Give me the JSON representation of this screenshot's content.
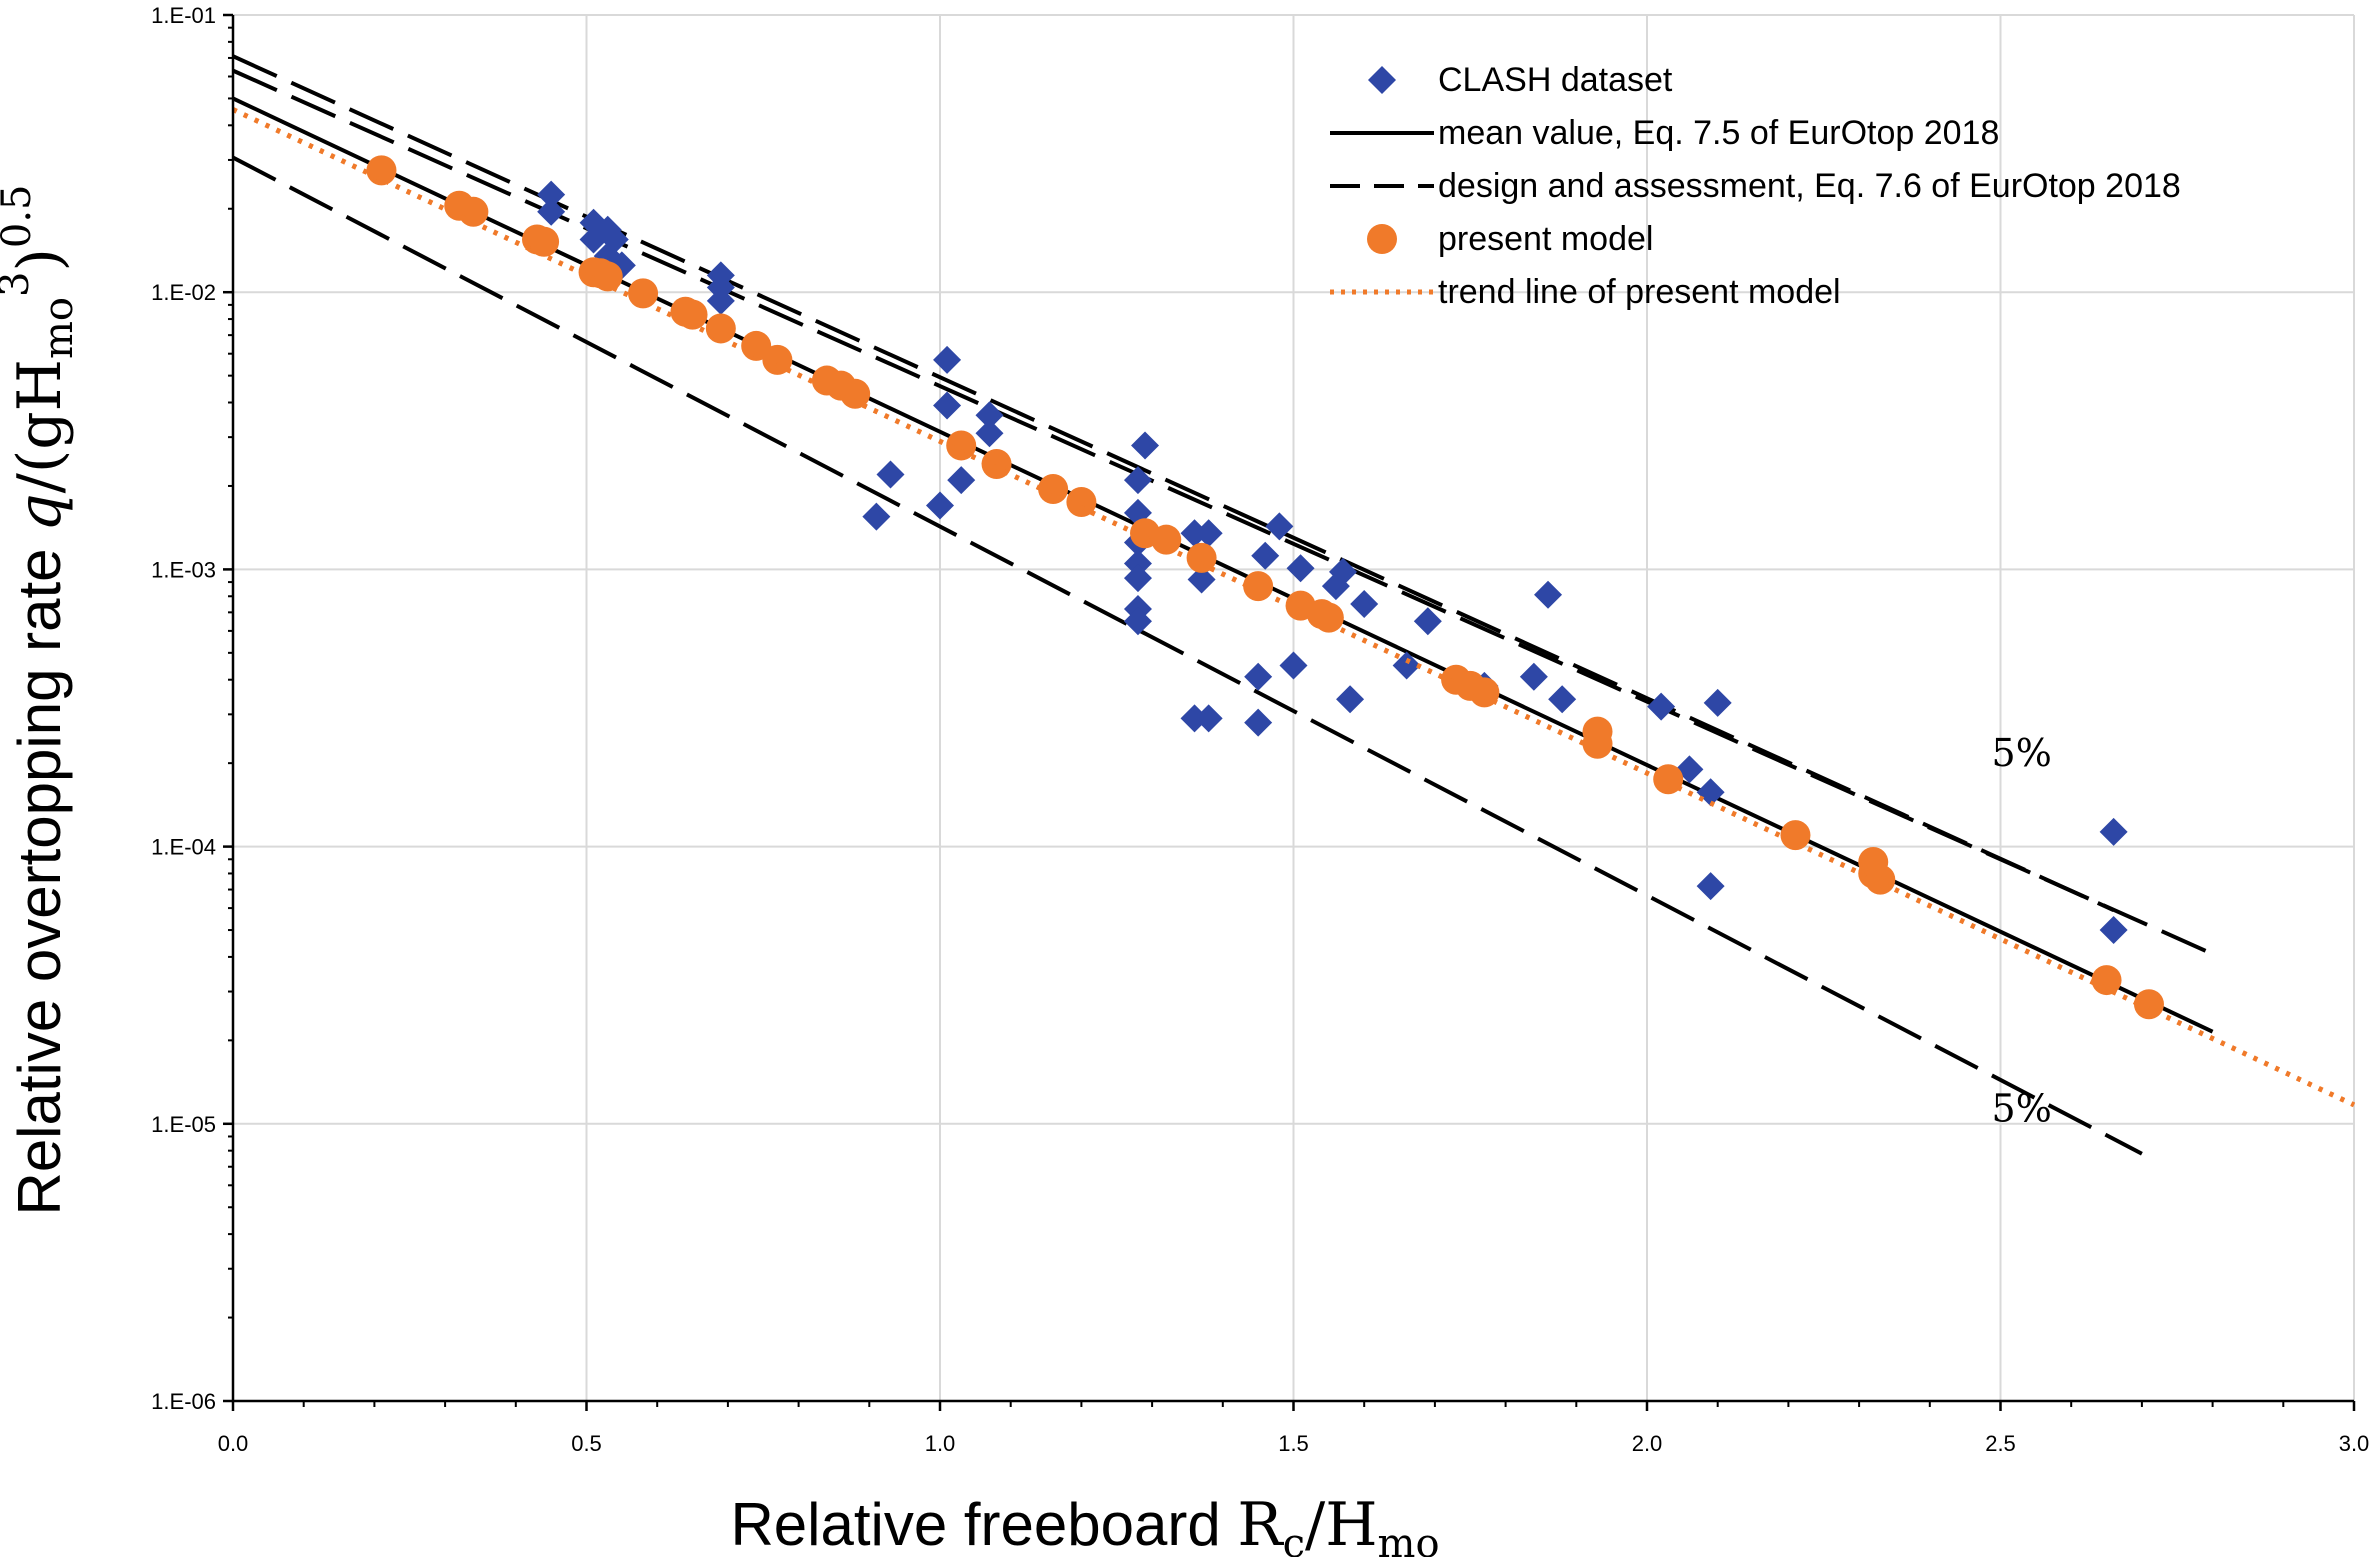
{
  "chart_data": {
    "type": "scatter",
    "xlabel_prefix": "Relative freeboard ",
    "xlabel_R": "R",
    "xlabel_c": "c",
    "xlabel_slash": "/H",
    "xlabel_mo": "mo",
    "ylabel_prefix": "Relative overtopping rate ",
    "ylabel_q": "q",
    "ylabel_mid": "/(gH",
    "ylabel_mo": "mo",
    "ylabel_3": "3",
    "ylabel_close": ")",
    "ylabel_exp": "0.5",
    "xlim": [
      0.0,
      3.0
    ],
    "ylim": [
      1e-06,
      0.1
    ],
    "yscale": "log",
    "grid": true,
    "x_ticks": [
      0.0,
      0.5,
      1.0,
      1.5,
      2.0,
      2.5,
      3.0
    ],
    "x_tick_labels": [
      "0.0",
      "0.5",
      "1.0",
      "1.5",
      "2.0",
      "2.5",
      "3.0"
    ],
    "y_ticks": [
      1e-06,
      1e-05,
      0.0001,
      0.001,
      0.01,
      0.1
    ],
    "y_tick_labels": [
      "1.E-06",
      "1.E-05",
      "1.E-04",
      "1.E-03",
      "1.E-02",
      "1.E-01"
    ],
    "legend_position": "top-right",
    "colors": {
      "clash": "#2e47a6",
      "present": "#f07a2a",
      "trend": "#f07a2a",
      "line": "#000000",
      "grid": "#d9d9d9",
      "axis": "#000000"
    },
    "series": [
      {
        "name": "CLASH dataset",
        "kind": "scatter",
        "marker": "diamond",
        "points": [
          [
            0.45,
            0.0225
          ],
          [
            0.45,
            0.0195
          ],
          [
            0.51,
            0.0178
          ],
          [
            0.51,
            0.0155
          ],
          [
            0.53,
            0.0168
          ],
          [
            0.54,
            0.0155
          ],
          [
            0.53,
            0.0135
          ],
          [
            0.55,
            0.0125
          ],
          [
            0.69,
            0.0115
          ],
          [
            0.69,
            0.0104
          ],
          [
            0.69,
            0.0093
          ],
          [
            1.01,
            0.0057
          ],
          [
            1.01,
            0.0039
          ],
          [
            1.07,
            0.0036
          ],
          [
            1.07,
            0.0031
          ],
          [
            1.03,
            0.0021
          ],
          [
            1.0,
            0.0017
          ],
          [
            0.93,
            0.0022
          ],
          [
            0.91,
            0.00155
          ],
          [
            1.29,
            0.0028
          ],
          [
            1.28,
            0.0021
          ],
          [
            1.28,
            0.0016
          ],
          [
            1.28,
            0.00125
          ],
          [
            1.28,
            0.00105
          ],
          [
            1.28,
            0.00093
          ],
          [
            1.28,
            0.00072
          ],
          [
            1.28,
            0.00065
          ],
          [
            1.36,
            0.00135
          ],
          [
            1.38,
            0.00135
          ],
          [
            1.37,
            0.00092
          ],
          [
            1.36,
            0.00029
          ],
          [
            1.38,
            0.00029
          ],
          [
            1.45,
            0.00041
          ],
          [
            1.45,
            0.00028
          ],
          [
            1.46,
            0.00112
          ],
          [
            1.48,
            0.00143
          ],
          [
            1.5,
            0.00045
          ],
          [
            1.51,
            0.00101
          ],
          [
            1.56,
            0.00087
          ],
          [
            1.57,
            0.00098
          ],
          [
            1.58,
            0.00034
          ],
          [
            1.6,
            0.00075
          ],
          [
            1.66,
            0.00045
          ],
          [
            1.69,
            0.00065
          ],
          [
            1.77,
            0.00038
          ],
          [
            1.84,
            0.00041
          ],
          [
            1.86,
            0.00081
          ],
          [
            1.88,
            0.00034
          ],
          [
            2.02,
            0.00032
          ],
          [
            2.06,
            0.00019
          ],
          [
            2.09,
            0.000157
          ],
          [
            2.1,
            0.00033
          ],
          [
            2.09,
            7.2e-05
          ],
          [
            2.66,
            0.000113
          ],
          [
            2.66,
            5e-05
          ]
        ]
      },
      {
        "name": "mean value, Eq. 7.5 of EurOtop 2018",
        "kind": "line",
        "dash": "solid",
        "line": [
          [
            0.0,
            0.05
          ],
          [
            2.8,
            2.15e-05
          ]
        ]
      },
      {
        "name": "design and assessment, Eq. 7.6 of EurOtop 2018",
        "kind": "line",
        "dash": "long-dash",
        "line": [
          [
            0.0,
            0.063
          ],
          [
            2.8,
            4.1e-05
          ]
        ]
      },
      {
        "name": "5% upper bound",
        "kind": "line",
        "dash": "long-dash",
        "line": [
          [
            0.0,
            0.071
          ],
          [
            2.66,
            5.9e-05
          ]
        ]
      },
      {
        "name": "5% lower bound",
        "kind": "line",
        "dash": "long-dash",
        "line": [
          [
            0.0,
            0.0306
          ],
          [
            2.7,
            7.8e-06
          ]
        ]
      },
      {
        "name": "present model",
        "kind": "scatter",
        "marker": "circle",
        "points": [
          [
            0.21,
            0.0275
          ],
          [
            0.32,
            0.0205
          ],
          [
            0.34,
            0.0195
          ],
          [
            0.43,
            0.0155
          ],
          [
            0.44,
            0.0152
          ],
          [
            0.51,
            0.0118
          ],
          [
            0.52,
            0.0117
          ],
          [
            0.53,
            0.0114
          ],
          [
            0.58,
            0.0099
          ],
          [
            0.64,
            0.0085
          ],
          [
            0.65,
            0.0083
          ],
          [
            0.69,
            0.0074
          ],
          [
            0.74,
            0.0064
          ],
          [
            0.77,
            0.0057
          ],
          [
            0.84,
            0.0048
          ],
          [
            0.86,
            0.0046
          ],
          [
            0.88,
            0.0043
          ],
          [
            1.03,
            0.0028
          ],
          [
            1.08,
            0.0024
          ],
          [
            1.16,
            0.00195
          ],
          [
            1.2,
            0.00175
          ],
          [
            1.29,
            0.00135
          ],
          [
            1.32,
            0.00128
          ],
          [
            1.37,
            0.0011
          ],
          [
            1.45,
            0.00087
          ],
          [
            1.51,
            0.00074
          ],
          [
            1.54,
            0.00069
          ],
          [
            1.55,
            0.00067
          ],
          [
            1.73,
            0.0004
          ],
          [
            1.75,
            0.00038
          ],
          [
            1.77,
            0.00036
          ],
          [
            1.93,
            0.00026
          ],
          [
            1.93,
            0.000235
          ],
          [
            2.03,
            0.000175
          ],
          [
            2.21,
            0.00011
          ],
          [
            2.32,
            8.8e-05
          ],
          [
            2.32,
            8e-05
          ],
          [
            2.33,
            7.6e-05
          ],
          [
            2.65,
            3.3e-05
          ],
          [
            2.71,
            2.7e-05
          ]
        ]
      },
      {
        "name": "trend line of present model",
        "kind": "line",
        "dash": "dotted",
        "line": [
          [
            0.0,
            0.0456
          ],
          [
            3.0,
            1.17e-05
          ]
        ]
      }
    ],
    "legend": [
      {
        "label": "CLASH dataset",
        "marker": "diamond"
      },
      {
        "label": "mean value, Eq. 7.5 of EurOtop 2018",
        "marker": "solid"
      },
      {
        "label": "design and assessment, Eq. 7.6 of EurOtop 2018",
        "marker": "dash"
      },
      {
        "label": "present model",
        "marker": "circle"
      },
      {
        "label": "trend line of present model",
        "marker": "dotted"
      }
    ],
    "annotations": [
      {
        "text": "5%",
        "x": 2.53,
        "y": 0.000195,
        "refers_to": "5% upper bound"
      },
      {
        "text": "5%",
        "x": 2.53,
        "y": 1.02e-05,
        "refers_to": "5% lower bound"
      }
    ]
  }
}
